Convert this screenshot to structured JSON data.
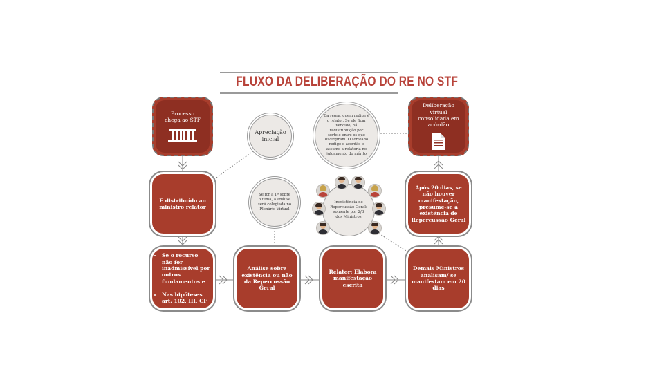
{
  "title": "FLUXO DA DELIBERAÇÃO DO RE NO STF",
  "boxes": {
    "processo": "Processo chega ao STF",
    "distribuido": "É distribuído ao ministro relator",
    "se_recurso_item1": "Se o recurso não for inadmissível por outros fundamentos e",
    "se_recurso_item2": "Nas hipóteses art. 102, III, CF",
    "analise": "Análise sobre existência ou não da Repercussão Geral",
    "relator": "Relator: Elabora manifestação escrita",
    "demais": "Demais Ministros analisam/ se manifestam em 20 dias",
    "apos20": "Após 20 dias, se não houver manifestação, presume-se a existência de Repercussão Geral",
    "deliberacao": "Deliberação virtual consolidada em acórdão"
  },
  "circles": {
    "apreciacao": "Apreciação inicial",
    "se_for": "Se for a 1ª sobre o tema, a análise será colegiada no Plenário Virtual",
    "da_regra": "Da regra, quem redige é o relator. Se ele ficar vencido, há redistribuição por sorteio entre os que divergiram. O sorteado redige o acórdão e assume a relatoria no julgamento do mérito",
    "inexistencia": "Inexistência de Repercussão Geral: somente por 2/3 dos Ministros"
  },
  "icons": {
    "building": "stf-building-icon",
    "document": "document-icon",
    "person": "minister-avatar-icon"
  },
  "colors": {
    "box": "#a83d2c",
    "box_dark": "#8e2f22",
    "title": "#b8433a",
    "circle_bg": "#ece9e6",
    "connector": "#888888"
  }
}
